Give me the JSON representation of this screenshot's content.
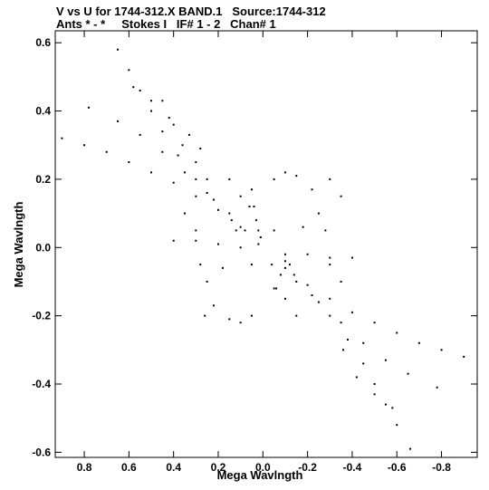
{
  "chart_data": {
    "type": "scatter",
    "title": "V vs U for 1744-312.X BAND.1   Source:1744-312",
    "subtitle": "Ants * - *     Stokes I   IF# 1 - 2   Chan# 1",
    "xlabel": "Mega Wavlngth",
    "ylabel": "Mega Wavlngth",
    "xlim": [
      0.93,
      -0.96
    ],
    "ylim": [
      -0.615,
      0.635
    ],
    "x_ticks": [
      0.8,
      0.6,
      0.4,
      0.2,
      0.0,
      -0.2,
      -0.4,
      -0.6,
      -0.8
    ],
    "x_tick_labels": [
      "0.8",
      "0.6",
      "0.4",
      "0.2",
      "0.0",
      "-0.2",
      "-0.4",
      "-0.6",
      "-0.8"
    ],
    "y_ticks": [
      0.6,
      0.4,
      0.2,
      0.0,
      -0.2,
      -0.4,
      -0.6
    ],
    "y_tick_labels": [
      "0.6",
      "0.4",
      "0.2",
      "0.0",
      "-0.2",
      "-0.4",
      "-0.6"
    ],
    "grid": false,
    "point_color": "#000000",
    "points": [
      [
        0.9,
        0.32
      ],
      [
        0.8,
        0.3
      ],
      [
        0.7,
        0.28
      ],
      [
        0.6,
        0.25
      ],
      [
        0.5,
        0.22
      ],
      [
        0.4,
        0.19
      ],
      [
        0.3,
        0.15
      ],
      [
        0.2,
        0.11
      ],
      [
        0.1,
        0.06
      ],
      [
        0.02,
        0.01
      ],
      [
        0.78,
        0.41
      ],
      [
        0.65,
        0.37
      ],
      [
        0.55,
        0.33
      ],
      [
        0.45,
        0.28
      ],
      [
        0.35,
        0.22
      ],
      [
        0.25,
        0.16
      ],
      [
        0.15,
        0.1
      ],
      [
        0.08,
        0.05
      ],
      [
        0.65,
        0.58
      ],
      [
        0.6,
        0.52
      ],
      [
        0.55,
        0.46
      ],
      [
        0.5,
        0.4
      ],
      [
        0.45,
        0.34
      ],
      [
        0.38,
        0.27
      ],
      [
        0.3,
        0.2
      ],
      [
        0.22,
        0.14
      ],
      [
        0.14,
        0.08
      ],
      [
        0.58,
        0.47
      ],
      [
        0.5,
        0.43
      ],
      [
        0.42,
        0.38
      ],
      [
        0.36,
        0.3
      ],
      [
        0.3,
        0.25
      ],
      [
        0.25,
        0.2
      ],
      [
        0.45,
        0.43
      ],
      [
        0.4,
        0.36
      ],
      [
        0.33,
        0.33
      ],
      [
        0.28,
        0.29
      ],
      [
        0.05,
        0.17
      ],
      [
        0.04,
        0.12
      ],
      [
        0.03,
        0.08
      ],
      [
        0.02,
        0.05
      ],
      [
        0.01,
        0.03
      ],
      [
        -0.9,
        -0.32
      ],
      [
        -0.8,
        -0.3
      ],
      [
        -0.7,
        -0.28
      ],
      [
        -0.6,
        -0.25
      ],
      [
        -0.5,
        -0.22
      ],
      [
        -0.4,
        -0.19
      ],
      [
        -0.3,
        -0.15
      ],
      [
        -0.2,
        -0.11
      ],
      [
        -0.1,
        -0.06
      ],
      [
        -0.78,
        -0.41
      ],
      [
        -0.65,
        -0.37
      ],
      [
        -0.55,
        -0.33
      ],
      [
        -0.45,
        -0.28
      ],
      [
        -0.35,
        -0.22
      ],
      [
        -0.25,
        -0.16
      ],
      [
        -0.15,
        -0.1
      ],
      [
        -0.66,
        -0.59
      ],
      [
        -0.6,
        -0.52
      ],
      [
        -0.55,
        -0.46
      ],
      [
        -0.5,
        -0.4
      ],
      [
        -0.45,
        -0.34
      ],
      [
        -0.38,
        -0.27
      ],
      [
        -0.3,
        -0.2
      ],
      [
        -0.22,
        -0.14
      ],
      [
        -0.14,
        -0.08
      ],
      [
        -0.58,
        -0.47
      ],
      [
        -0.5,
        -0.43
      ],
      [
        -0.42,
        -0.38
      ],
      [
        -0.36,
        -0.3
      ],
      [
        -0.05,
        -0.12
      ],
      [
        -0.08,
        -0.08
      ],
      [
        -0.1,
        -0.04
      ],
      [
        -0.04,
        -0.05
      ],
      [
        0.4,
        0.02
      ],
      [
        0.3,
        0.02
      ],
      [
        0.2,
        0.01
      ],
      [
        0.1,
        0.0
      ],
      [
        -0.1,
        -0.02
      ],
      [
        -0.2,
        -0.02
      ],
      [
        -0.3,
        -0.03
      ],
      [
        -0.4,
        -0.03
      ],
      [
        0.35,
        0.1
      ],
      [
        0.3,
        0.05
      ],
      [
        0.28,
        -0.05
      ],
      [
        0.25,
        -0.1
      ],
      [
        0.22,
        -0.17
      ],
      [
        0.26,
        -0.2
      ],
      [
        -0.35,
        -0.1
      ],
      [
        -0.3,
        -0.05
      ],
      [
        -0.28,
        0.05
      ],
      [
        -0.25,
        0.1
      ],
      [
        -0.22,
        0.17
      ],
      [
        -0.3,
        0.2
      ],
      [
        -0.35,
        0.15
      ],
      [
        0.15,
        0.2
      ],
      [
        0.1,
        0.15
      ],
      [
        -0.05,
        0.2
      ],
      [
        -0.1,
        0.22
      ],
      [
        -0.15,
        0.21
      ],
      [
        -0.15,
        -0.2
      ],
      [
        -0.1,
        -0.15
      ],
      [
        0.05,
        -0.2
      ],
      [
        0.1,
        -0.22
      ],
      [
        0.15,
        -0.21
      ],
      [
        0.12,
        0.05
      ],
      [
        0.05,
        -0.05
      ],
      [
        -0.05,
        0.05
      ],
      [
        -0.12,
        -0.05
      ],
      [
        0.18,
        -0.06
      ],
      [
        -0.18,
        0.06
      ],
      [
        0.06,
        0.12
      ],
      [
        -0.06,
        -0.12
      ]
    ]
  }
}
